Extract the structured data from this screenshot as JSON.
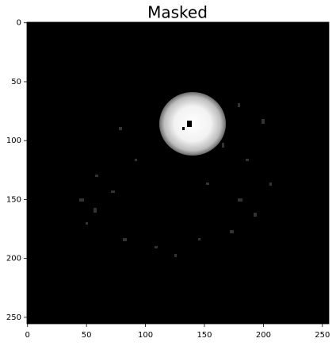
{
  "chart_data": {
    "type": "image",
    "title": "Masked",
    "xlim": [
      -0.5,
      255.5
    ],
    "ylim": [
      255.5,
      -0.5
    ],
    "xticks": [
      0,
      50,
      100,
      150,
      200,
      250
    ],
    "yticks": [
      0,
      50,
      100,
      150,
      200,
      250
    ]
  }
}
